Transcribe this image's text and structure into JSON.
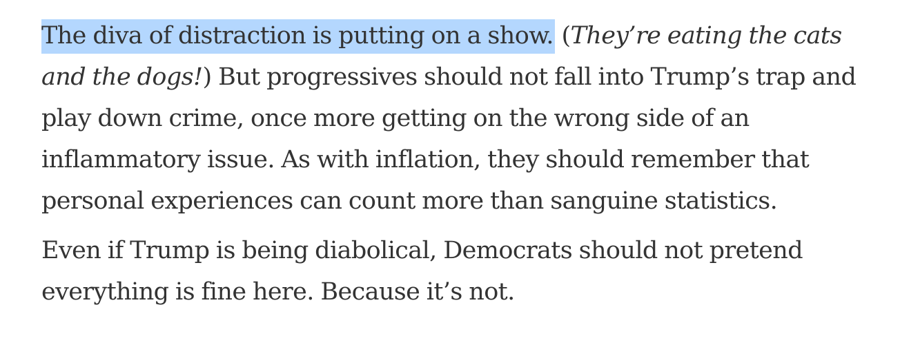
{
  "article": {
    "paragraph_1": {
      "highlighted_sentence": "The diva of distraction is putting on a show.",
      "aside_open": "(",
      "aside_quote": "They’re eating the cats and the dogs!",
      "aside_close": ")",
      "rest": "But progressives should not fall into Trump’s trap and play down crime, once more getting on the wrong side of an inflammatory issue. As with inflation, they should remember that personal experiences can count more than sanguine statistics."
    },
    "paragraph_2": {
      "text": "Even if Trump is being diabolical, Democrats should not pretend everything is fine here. Because it’s not."
    }
  },
  "colors": {
    "text": "#333333",
    "selection_highlight": "#b4d7fe",
    "background": "#ffffff"
  }
}
